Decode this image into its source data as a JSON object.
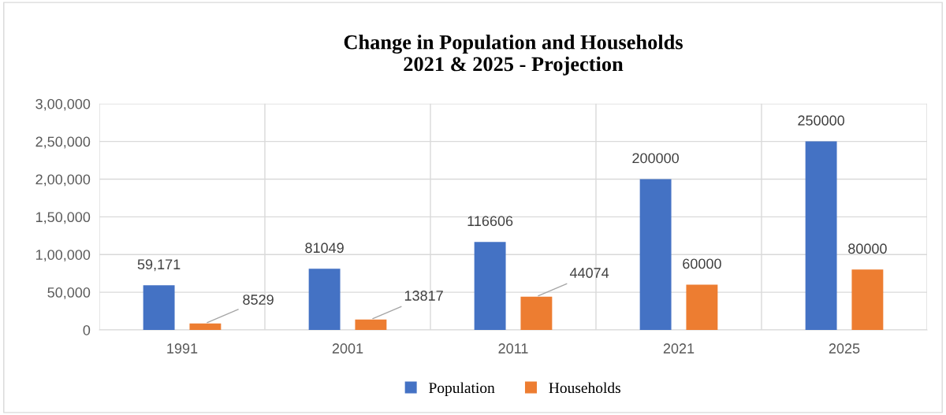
{
  "chart_data": {
    "type": "bar",
    "title": "Change in Population and Households\n2021 & 2025 - Projection",
    "categories": [
      "1991",
      "2001",
      "2011",
      "2021",
      "2025"
    ],
    "series": [
      {
        "name": "Population",
        "color": "#4472c4",
        "values": [
          59171,
          81049,
          116606,
          200000,
          250000
        ],
        "value_labels": [
          "59,171",
          "81049",
          "116606",
          "200000",
          "250000"
        ]
      },
      {
        "name": "Households",
        "color": "#ed7d31",
        "values": [
          8529,
          13817,
          44074,
          60000,
          80000
        ],
        "value_labels": [
          "8529",
          "13817",
          "44074",
          "60000",
          "80000"
        ]
      }
    ],
    "ylim": [
      0,
      300000
    ],
    "yticks": [
      {
        "value": 0,
        "label": "0"
      },
      {
        "value": 50000,
        "label": "50,000"
      },
      {
        "value": 100000,
        "label": "1,00,000"
      },
      {
        "value": 150000,
        "label": "1,50,000"
      },
      {
        "value": 200000,
        "label": "2,00,000"
      },
      {
        "value": 250000,
        "label": "2,50,000"
      },
      {
        "value": 300000,
        "label": "3,00,000"
      }
    ],
    "grid": true,
    "legend": "bottom"
  }
}
